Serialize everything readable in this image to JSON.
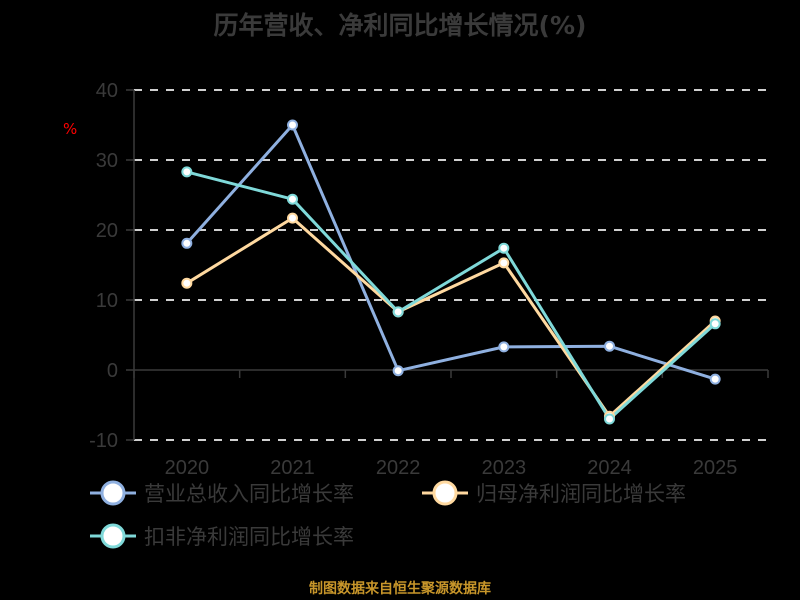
{
  "title": "历年营收、净利同比增长情况(%)",
  "unit_label": "%",
  "source_note": "制图数据来自恒生聚源数据库",
  "colors": {
    "background": "#000000",
    "text": "#3a3a3a",
    "unit": "#ff0000",
    "source": "#c8962a",
    "grid": "#d0d0d0",
    "axis": "#3a3a3a"
  },
  "legend": [
    {
      "label": "营业总收入同比增长率",
      "color": "#8fb0e0"
    },
    {
      "label": "归母净利润同比增长率",
      "color": "#ffd9a0"
    },
    {
      "label": "扣非净利润同比增长率",
      "color": "#7fd9d9"
    }
  ],
  "chart_data": {
    "type": "line",
    "title": "历年营收、净利同比增长情况(%)",
    "xlabel": "",
    "ylabel": "%",
    "categories": [
      "2020",
      "2021",
      "2022",
      "2023",
      "2024",
      "2025"
    ],
    "ylim": [
      -10,
      40
    ],
    "yticks": [
      -10,
      0,
      10,
      20,
      30,
      40
    ],
    "grid": true,
    "legend_position": "bottom",
    "series": [
      {
        "name": "营业总收入同比增长率",
        "color": "#8fb0e0",
        "values": [
          18.1,
          35.0,
          -0.1,
          3.3,
          3.4,
          -1.3
        ]
      },
      {
        "name": "归母净利润同比增长率",
        "color": "#ffd9a0",
        "values": [
          12.4,
          21.7,
          8.3,
          15.3,
          -6.6,
          7.0
        ]
      },
      {
        "name": "扣非净利润同比增长率",
        "color": "#7fd9d9",
        "values": [
          28.3,
          24.4,
          8.3,
          17.4,
          -7.0,
          6.6
        ]
      }
    ],
    "source": "制图数据来自恒生聚源数据库"
  }
}
